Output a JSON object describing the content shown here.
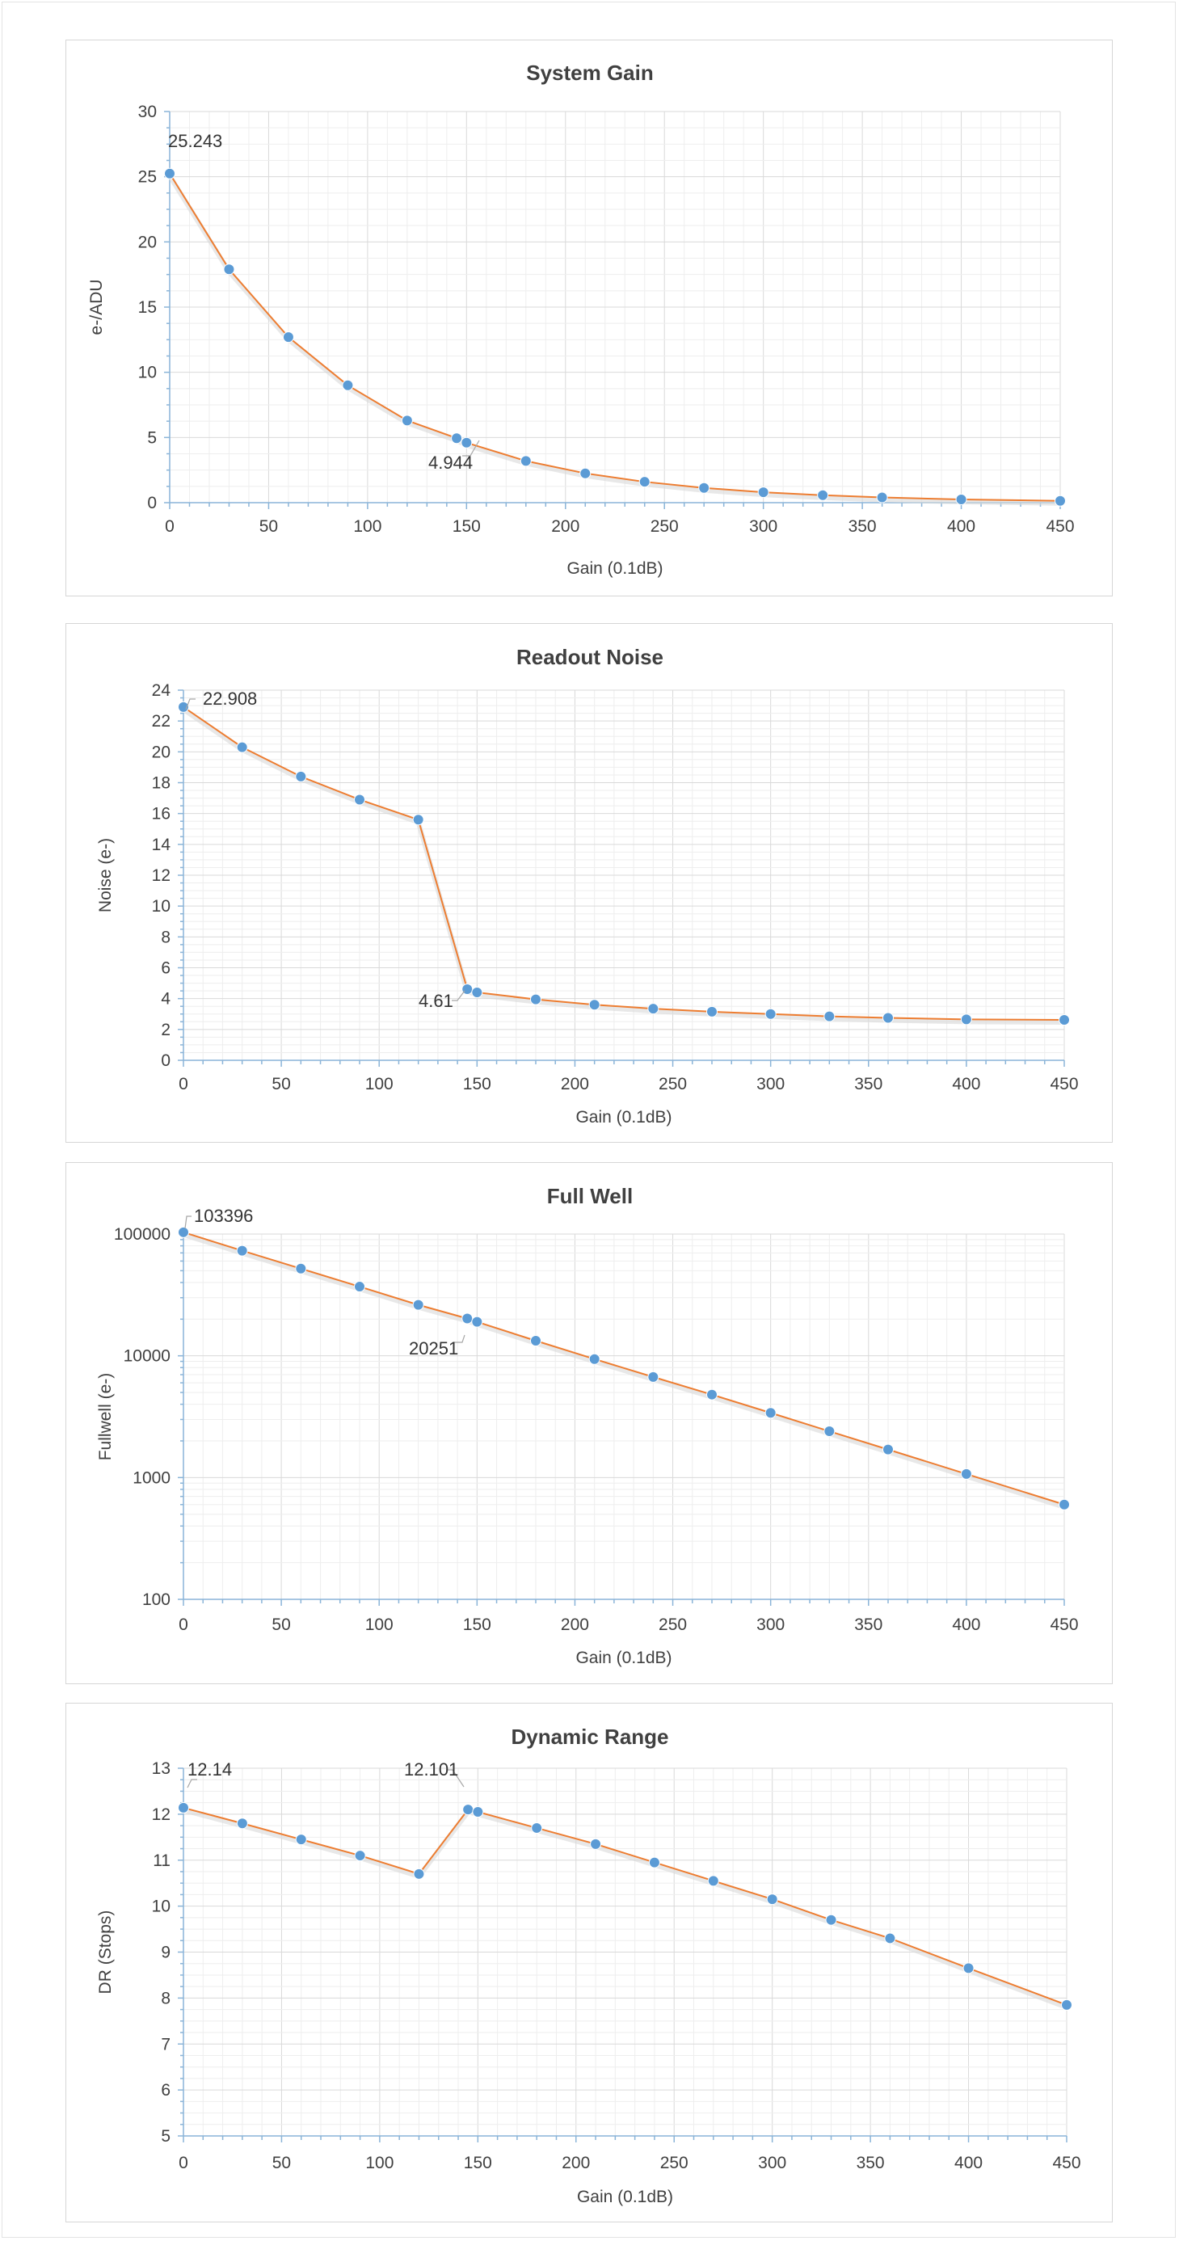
{
  "chart_data": [
    {
      "type": "line",
      "title": "System Gain",
      "xlabel": "Gain (0.1dB)",
      "ylabel": "e-/ADU",
      "xlim": [
        0,
        450
      ],
      "ylim": [
        0,
        30
      ],
      "xticks": [
        0,
        50,
        100,
        150,
        200,
        250,
        300,
        350,
        400,
        450
      ],
      "yticks": [
        0,
        5,
        10,
        15,
        20,
        25,
        30
      ],
      "yscale": "linear",
      "grid": true,
      "x": [
        0,
        30,
        60,
        90,
        120,
        145,
        150,
        180,
        210,
        240,
        270,
        300,
        330,
        360,
        400,
        450
      ],
      "series": [
        {
          "values": [
            25.243,
            17.9,
            12.7,
            9.0,
            6.3,
            4.944,
            4.6,
            3.2,
            2.25,
            1.6,
            1.13,
            0.8,
            0.57,
            0.4,
            0.25,
            0.14
          ]
        }
      ],
      "annotations": [
        {
          "x": 0,
          "y": 25.243,
          "text": "25.243"
        },
        {
          "x": 145,
          "y": 4.944,
          "text": "4.944"
        }
      ]
    },
    {
      "type": "line",
      "title": "Readout Noise",
      "xlabel": "Gain (0.1dB)",
      "ylabel": "Noise (e-)",
      "xlim": [
        0,
        450
      ],
      "ylim": [
        0,
        24
      ],
      "xticks": [
        0,
        50,
        100,
        150,
        200,
        250,
        300,
        350,
        400,
        450
      ],
      "yticks": [
        0,
        2,
        4,
        6,
        8,
        10,
        12,
        14,
        16,
        18,
        20,
        22,
        24
      ],
      "yscale": "linear",
      "grid": true,
      "x": [
        0,
        30,
        60,
        90,
        120,
        145,
        150,
        180,
        210,
        240,
        270,
        300,
        330,
        360,
        400,
        450
      ],
      "series": [
        {
          "values": [
            22.908,
            20.3,
            18.4,
            16.9,
            15.6,
            4.61,
            4.4,
            3.95,
            3.6,
            3.35,
            3.15,
            3.0,
            2.85,
            2.75,
            2.65,
            2.62
          ]
        }
      ],
      "annotations": [
        {
          "x": 0,
          "y": 22.908,
          "text": "22.908"
        },
        {
          "x": 145,
          "y": 4.61,
          "text": "4.61"
        }
      ]
    },
    {
      "type": "line",
      "title": "Full Well",
      "xlabel": "Gain (0.1dB)",
      "ylabel": "Fullwell (e-)",
      "xlim": [
        0,
        450
      ],
      "ylim": [
        100,
        100000
      ],
      "xticks": [
        0,
        50,
        100,
        150,
        200,
        250,
        300,
        350,
        400,
        450
      ],
      "yticks": [
        100,
        1000,
        10000,
        100000
      ],
      "yscale": "log",
      "grid": true,
      "x": [
        0,
        30,
        60,
        90,
        120,
        145,
        150,
        180,
        210,
        240,
        270,
        300,
        330,
        360,
        400,
        450
      ],
      "series": [
        {
          "values": [
            103396,
            73000,
            52000,
            37000,
            26200,
            20251,
            19000,
            13300,
            9400,
            6700,
            4800,
            3400,
            2400,
            1700,
            1070,
            600
          ]
        }
      ],
      "annotations": [
        {
          "x": 0,
          "y": 103396,
          "text": "103396"
        },
        {
          "x": 145,
          "y": 20251,
          "text": "20251"
        }
      ]
    },
    {
      "type": "line",
      "title": "Dynamic Range",
      "xlabel": "Gain (0.1dB)",
      "ylabel": "DR (Stops)",
      "xlim": [
        0,
        450
      ],
      "ylim": [
        5,
        13
      ],
      "xticks": [
        0,
        50,
        100,
        150,
        200,
        250,
        300,
        350,
        400,
        450
      ],
      "yticks": [
        5,
        6,
        7,
        8,
        9,
        10,
        11,
        12,
        13
      ],
      "yscale": "linear",
      "grid": true,
      "x": [
        0,
        30,
        60,
        90,
        120,
        145,
        150,
        180,
        210,
        240,
        270,
        300,
        330,
        360,
        400,
        450
      ],
      "series": [
        {
          "values": [
            12.14,
            11.8,
            11.45,
            11.1,
            10.7,
            12.101,
            12.05,
            11.7,
            11.35,
            10.95,
            10.55,
            10.15,
            9.7,
            9.3,
            8.65,
            7.85
          ]
        }
      ],
      "annotations": [
        {
          "x": 0,
          "y": 12.14,
          "text": "12.14"
        },
        {
          "x": 145,
          "y": 12.101,
          "text": "12.101"
        }
      ]
    }
  ],
  "colors": {
    "line": "#ed7d31",
    "marker": "#5b9bd5",
    "axis": "#8ab4d8",
    "grid_major": "#d9d9d9",
    "grid_minor": "#eeeeee",
    "text": "#404040"
  }
}
